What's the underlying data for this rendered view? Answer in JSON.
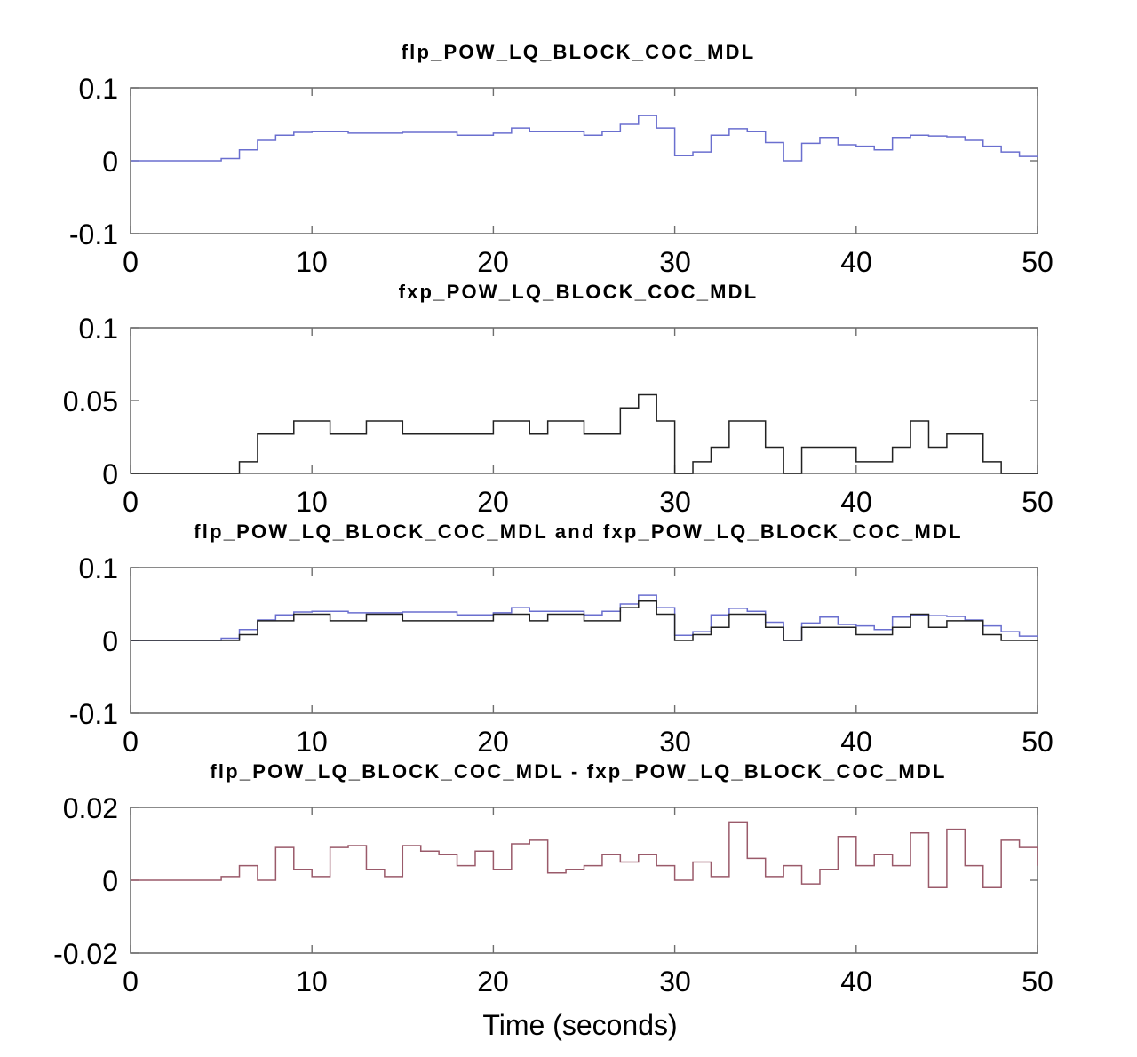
{
  "chart_data": [
    {
      "type": "line",
      "step": true,
      "title": "flp_POW_LQ_BLOCK_COC_MDL",
      "xlim": [
        0,
        50
      ],
      "ylim": [
        -0.1,
        0.1
      ],
      "xticks": [
        "0",
        "10",
        "20",
        "30",
        "40",
        "50"
      ],
      "yticks": [
        "0.1",
        "0",
        "-0.1"
      ],
      "series": [
        {
          "color": "#6a6fcf",
          "x": [
            0,
            5,
            6,
            7,
            8,
            9,
            10,
            12,
            15,
            18,
            20,
            21,
            22,
            23,
            25,
            26,
            27,
            28,
            29,
            30,
            31,
            32,
            33,
            34,
            35,
            36,
            37,
            38,
            39,
            40,
            41,
            42,
            43,
            44,
            45,
            46,
            47,
            48,
            49,
            50
          ],
          "y": [
            0,
            0.003,
            0.015,
            0.028,
            0.035,
            0.039,
            0.04,
            0.038,
            0.039,
            0.035,
            0.038,
            0.045,
            0.04,
            0.04,
            0.035,
            0.04,
            0.05,
            0.062,
            0.045,
            0.007,
            0.012,
            0.035,
            0.044,
            0.04,
            0.025,
            0.0,
            0.024,
            0.032,
            0.022,
            0.02,
            0.015,
            0.032,
            0.035,
            0.034,
            0.033,
            0.028,
            0.02,
            0.012,
            0.006,
            0.006
          ]
        }
      ]
    },
    {
      "type": "line",
      "step": true,
      "title": "fxp_POW_LQ_BLOCK_COC_MDL",
      "xlim": [
        0,
        50
      ],
      "ylim": [
        0,
        0.1
      ],
      "xticks": [
        "0",
        "10",
        "20",
        "30",
        "40",
        "50"
      ],
      "yticks": [
        "0.1",
        "0.05",
        "0"
      ],
      "series": [
        {
          "color": "#222222",
          "x": [
            0,
            6,
            7,
            9,
            11,
            13,
            15,
            20,
            22,
            23,
            25,
            27,
            28,
            29,
            30,
            31,
            32,
            33,
            35,
            36,
            37,
            40,
            42,
            43,
            44,
            45,
            47,
            48,
            50
          ],
          "y": [
            0,
            0.008,
            0.027,
            0.036,
            0.027,
            0.036,
            0.027,
            0.036,
            0.027,
            0.036,
            0.027,
            0.045,
            0.054,
            0.036,
            0,
            0.008,
            0.018,
            0.036,
            0.018,
            0,
            0.018,
            0.008,
            0.018,
            0.036,
            0.018,
            0.027,
            0.008,
            0,
            0
          ]
        }
      ]
    },
    {
      "type": "line",
      "step": true,
      "title": "flp_POW_LQ_BLOCK_COC_MDL and fxp_POW_LQ_BLOCK_COC_MDL",
      "xlim": [
        0,
        50
      ],
      "ylim": [
        -0.1,
        0.1
      ],
      "xticks": [
        "0",
        "10",
        "20",
        "30",
        "40",
        "50"
      ],
      "yticks": [
        "0.1",
        "0",
        "-0.1"
      ],
      "series": [
        {
          "color": "#6a6fcf",
          "x": [
            0,
            5,
            6,
            7,
            8,
            9,
            10,
            12,
            15,
            18,
            20,
            21,
            22,
            23,
            25,
            26,
            27,
            28,
            29,
            30,
            31,
            32,
            33,
            34,
            35,
            36,
            37,
            38,
            39,
            40,
            41,
            42,
            43,
            44,
            45,
            46,
            47,
            48,
            49,
            50
          ],
          "y": [
            0,
            0.003,
            0.015,
            0.028,
            0.035,
            0.039,
            0.04,
            0.038,
            0.039,
            0.035,
            0.038,
            0.045,
            0.04,
            0.04,
            0.035,
            0.04,
            0.05,
            0.062,
            0.045,
            0.007,
            0.012,
            0.035,
            0.044,
            0.04,
            0.025,
            0.0,
            0.024,
            0.032,
            0.022,
            0.02,
            0.015,
            0.032,
            0.035,
            0.034,
            0.033,
            0.028,
            0.02,
            0.012,
            0.006,
            0.006
          ]
        },
        {
          "color": "#222222",
          "x": [
            0,
            6,
            7,
            9,
            11,
            13,
            15,
            20,
            22,
            23,
            25,
            27,
            28,
            29,
            30,
            31,
            32,
            33,
            35,
            36,
            37,
            40,
            42,
            43,
            44,
            45,
            47,
            48,
            50
          ],
          "y": [
            0,
            0.008,
            0.027,
            0.036,
            0.027,
            0.036,
            0.027,
            0.036,
            0.027,
            0.036,
            0.027,
            0.045,
            0.054,
            0.036,
            0,
            0.008,
            0.018,
            0.036,
            0.018,
            0,
            0.018,
            0.008,
            0.018,
            0.036,
            0.018,
            0.027,
            0.008,
            0,
            0
          ]
        }
      ]
    },
    {
      "type": "line",
      "step": true,
      "title": "flp_POW_LQ_BLOCK_COC_MDL - fxp_POW_LQ_BLOCK_COC_MDL",
      "xlabel": "Time (seconds)",
      "xlim": [
        0,
        50
      ],
      "ylim": [
        -0.02,
        0.02
      ],
      "xticks": [
        "0",
        "10",
        "20",
        "30",
        "40",
        "50"
      ],
      "yticks": [
        "0.02",
        "0",
        "-0.02"
      ],
      "series": [
        {
          "color": "#9a5a6a",
          "x": [
            0,
            5,
            6,
            7,
            8,
            9,
            10,
            11,
            12,
            13,
            14,
            15,
            16,
            17,
            18,
            19,
            20,
            21,
            22,
            23,
            24,
            25,
            26,
            27,
            28,
            29,
            30,
            31,
            32,
            33,
            34,
            35,
            36,
            37,
            38,
            39,
            40,
            41,
            42,
            43,
            44,
            45,
            46,
            47,
            48,
            49,
            50
          ],
          "y": [
            0,
            0.001,
            0.004,
            0.0,
            0.009,
            0.003,
            0.001,
            0.009,
            0.0095,
            0.003,
            0.001,
            0.0095,
            0.008,
            0.007,
            0.004,
            0.008,
            0.003,
            0.01,
            0.011,
            0.002,
            0.003,
            0.004,
            0.007,
            0.005,
            0.007,
            0.004,
            0.0,
            0.005,
            0.001,
            0.016,
            0.006,
            0.001,
            0.004,
            -0.001,
            0.003,
            0.012,
            0.004,
            0.007,
            0.004,
            0.013,
            -0.002,
            0.014,
            0.004,
            -0.002,
            0.011,
            0.009,
            0.004
          ]
        }
      ]
    }
  ]
}
